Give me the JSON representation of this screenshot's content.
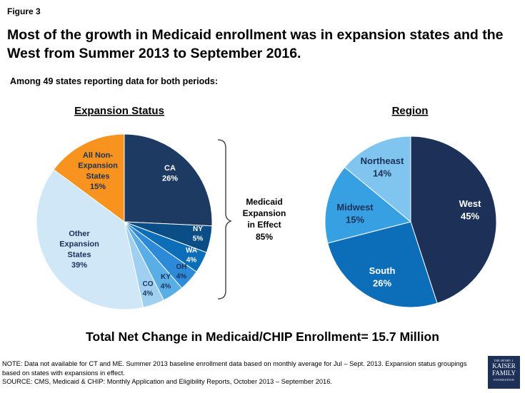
{
  "figure_label": "Figure 3",
  "title": "Most of the growth in Medicaid enrollment was in expansion states and the West from Summer 2013 to September 2016.",
  "subtitle": "Among 49 states reporting data for both periods:",
  "bracket_label": [
    "Medicaid",
    "Expansion",
    "in Effect",
    "85%"
  ],
  "total_change": "Total Net Change in Medicaid/CHIP Enrollment= 15.7 Million",
  "notes": [
    "NOTE: Data not available for CT and ME. Summer 2013 baseline enrollment data based on monthly average for Jul – Sept. 2013. Expansion status groupings based on states with expansions in effect.",
    "SOURCE: CMS, Medicaid & CHIP: Monthly Application and Eligibility Reports, October 2013 – September 2016."
  ],
  "logo": {
    "line1": "THE HENRY J.",
    "line2a": "KAISER",
    "line2b": "FAMILY",
    "line3": "FOUNDATION"
  },
  "chart_data": [
    {
      "type": "pie",
      "title": "Expansion Status",
      "slices": [
        {
          "label": [
            "CA",
            "26%"
          ],
          "value": 26,
          "color": "#1d3a63",
          "text_color": "#ffffff"
        },
        {
          "label": [
            "NY",
            "5%"
          ],
          "value": 5,
          "color": "#0b4d86",
          "text_color": "#ffffff"
        },
        {
          "label": [
            "WA",
            "4%"
          ],
          "value": 4,
          "color": "#0c6db9",
          "text_color": "#ffffff"
        },
        {
          "label": [
            "OH",
            "4%"
          ],
          "value": 4,
          "color": "#2c8ad8",
          "text_color": "#1d3158"
        },
        {
          "label": [
            "KY",
            "4%"
          ],
          "value": 4,
          "color": "#5aaee6",
          "text_color": "#1d3158"
        },
        {
          "label": [
            "CO",
            "4%"
          ],
          "value": 4,
          "color": "#9fd0f1",
          "text_color": "#1d3158"
        },
        {
          "label": [
            "Other",
            "Expansion",
            "States",
            "39%"
          ],
          "value": 39,
          "color": "#cfe7f7",
          "text_color": "#1d3158"
        },
        {
          "label": [
            "All Non-",
            "Expansion",
            "States",
            "15%"
          ],
          "value": 15,
          "color": "#f7931e",
          "text_color": "#1d3158"
        }
      ]
    },
    {
      "type": "pie",
      "title": "Region",
      "slices": [
        {
          "label": [
            "West",
            "45%"
          ],
          "value": 45,
          "color": "#1d3158",
          "text_color": "#ffffff"
        },
        {
          "label": [
            "South",
            "26%"
          ],
          "value": 26,
          "color": "#0c6db9",
          "text_color": "#ffffff"
        },
        {
          "label": [
            "Midwest",
            "15%"
          ],
          "value": 15,
          "color": "#37a0e3",
          "text_color": "#1d3158"
        },
        {
          "label": [
            "Northeast",
            "14%"
          ],
          "value": 14,
          "color": "#7fc5ef",
          "text_color": "#1d3158"
        }
      ]
    }
  ]
}
